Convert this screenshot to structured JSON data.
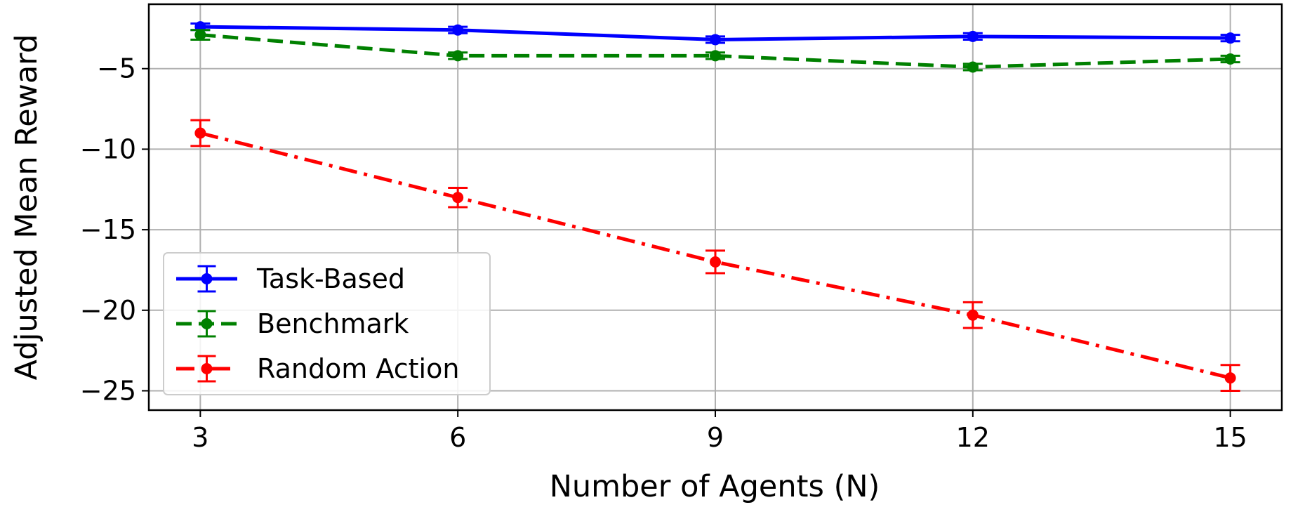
{
  "chart_data": {
    "type": "line",
    "title": "",
    "xlabel": "Number of Agents (N)",
    "ylabel": "Adjusted Mean Reward",
    "x": [
      3,
      6,
      9,
      12,
      15
    ],
    "x_ticks": [
      3,
      6,
      9,
      12,
      15
    ],
    "y_ticks": [
      -5,
      -10,
      -15,
      -20,
      -25
    ],
    "xlim": [
      2.4,
      15.6
    ],
    "ylim": [
      -26.2,
      -1.0
    ],
    "grid": true,
    "legend_position": "lower-left",
    "series": [
      {
        "name": "Task-Based",
        "color": "#0000ff",
        "line_style": "solid",
        "values": [
          -2.4,
          -2.6,
          -3.2,
          -3.0,
          -3.1
        ],
        "error": [
          0.2,
          0.2,
          0.2,
          0.2,
          0.2
        ]
      },
      {
        "name": "Benchmark",
        "color": "#008000",
        "line_style": "dashed",
        "values": [
          -2.9,
          -4.2,
          -4.2,
          -4.9,
          -4.4
        ],
        "error": [
          0.3,
          0.2,
          0.2,
          0.2,
          0.2
        ]
      },
      {
        "name": "Random Action",
        "color": "#ff0000",
        "line_style": "dash-dot",
        "values": [
          -9.0,
          -13.0,
          -17.0,
          -20.3,
          -24.2
        ],
        "error": [
          0.8,
          0.6,
          0.7,
          0.8,
          0.8
        ]
      }
    ]
  }
}
